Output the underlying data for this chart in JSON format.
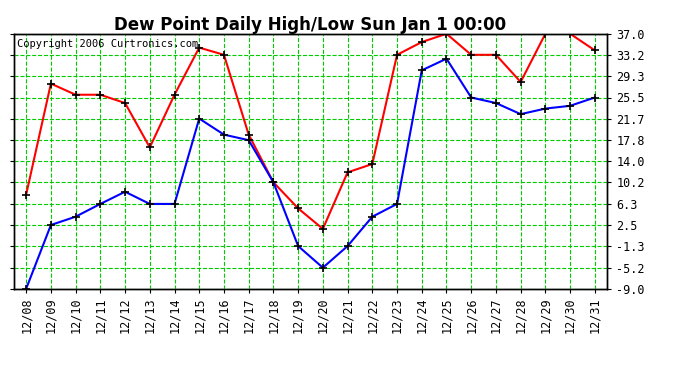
{
  "title": "Dew Point Daily High/Low Sun Jan 1 00:00",
  "copyright": "Copyright 2006 Curtronics.com",
  "x_labels": [
    "12/08",
    "12/09",
    "12/10",
    "12/11",
    "12/12",
    "12/13",
    "12/14",
    "12/15",
    "12/16",
    "12/17",
    "12/18",
    "12/19",
    "12/20",
    "12/21",
    "12/22",
    "12/23",
    "12/24",
    "12/25",
    "12/26",
    "12/27",
    "12/28",
    "12/29",
    "12/30",
    "12/31"
  ],
  "high_values": [
    8.0,
    28.0,
    26.0,
    26.0,
    24.5,
    16.5,
    26.0,
    34.5,
    33.2,
    18.8,
    10.2,
    5.5,
    1.8,
    12.0,
    13.5,
    33.2,
    35.5,
    37.0,
    33.2,
    33.2,
    28.3,
    37.0,
    37.0,
    34.0
  ],
  "low_values": [
    -9.0,
    2.5,
    4.0,
    6.3,
    8.5,
    6.3,
    6.3,
    21.7,
    18.8,
    17.8,
    10.2,
    -1.3,
    -5.2,
    -1.3,
    4.0,
    6.3,
    30.4,
    32.5,
    25.5,
    24.5,
    22.5,
    23.5,
    24.0,
    25.5
  ],
  "y_ticks": [
    -9.0,
    -5.2,
    -1.3,
    2.5,
    6.3,
    10.2,
    14.0,
    17.8,
    21.7,
    25.5,
    29.3,
    33.2,
    37.0
  ],
  "y_tick_labels": [
    "-9.0",
    "-5.2",
    "-1.3",
    "2.5",
    "6.3",
    "10.2",
    "14.0",
    "17.8",
    "21.7",
    "25.5",
    "29.3",
    "33.2",
    "37.0"
  ],
  "y_min": -9.0,
  "y_max": 37.0,
  "bg_color": "#ffffff",
  "plot_bg_color": "#ffffff",
  "grid_color": "#00cc00",
  "high_color": "#ff0000",
  "low_color": "#0000ff",
  "marker_color": "#000000",
  "title_fontsize": 12,
  "tick_fontsize": 8.5,
  "copyright_fontsize": 7.5
}
